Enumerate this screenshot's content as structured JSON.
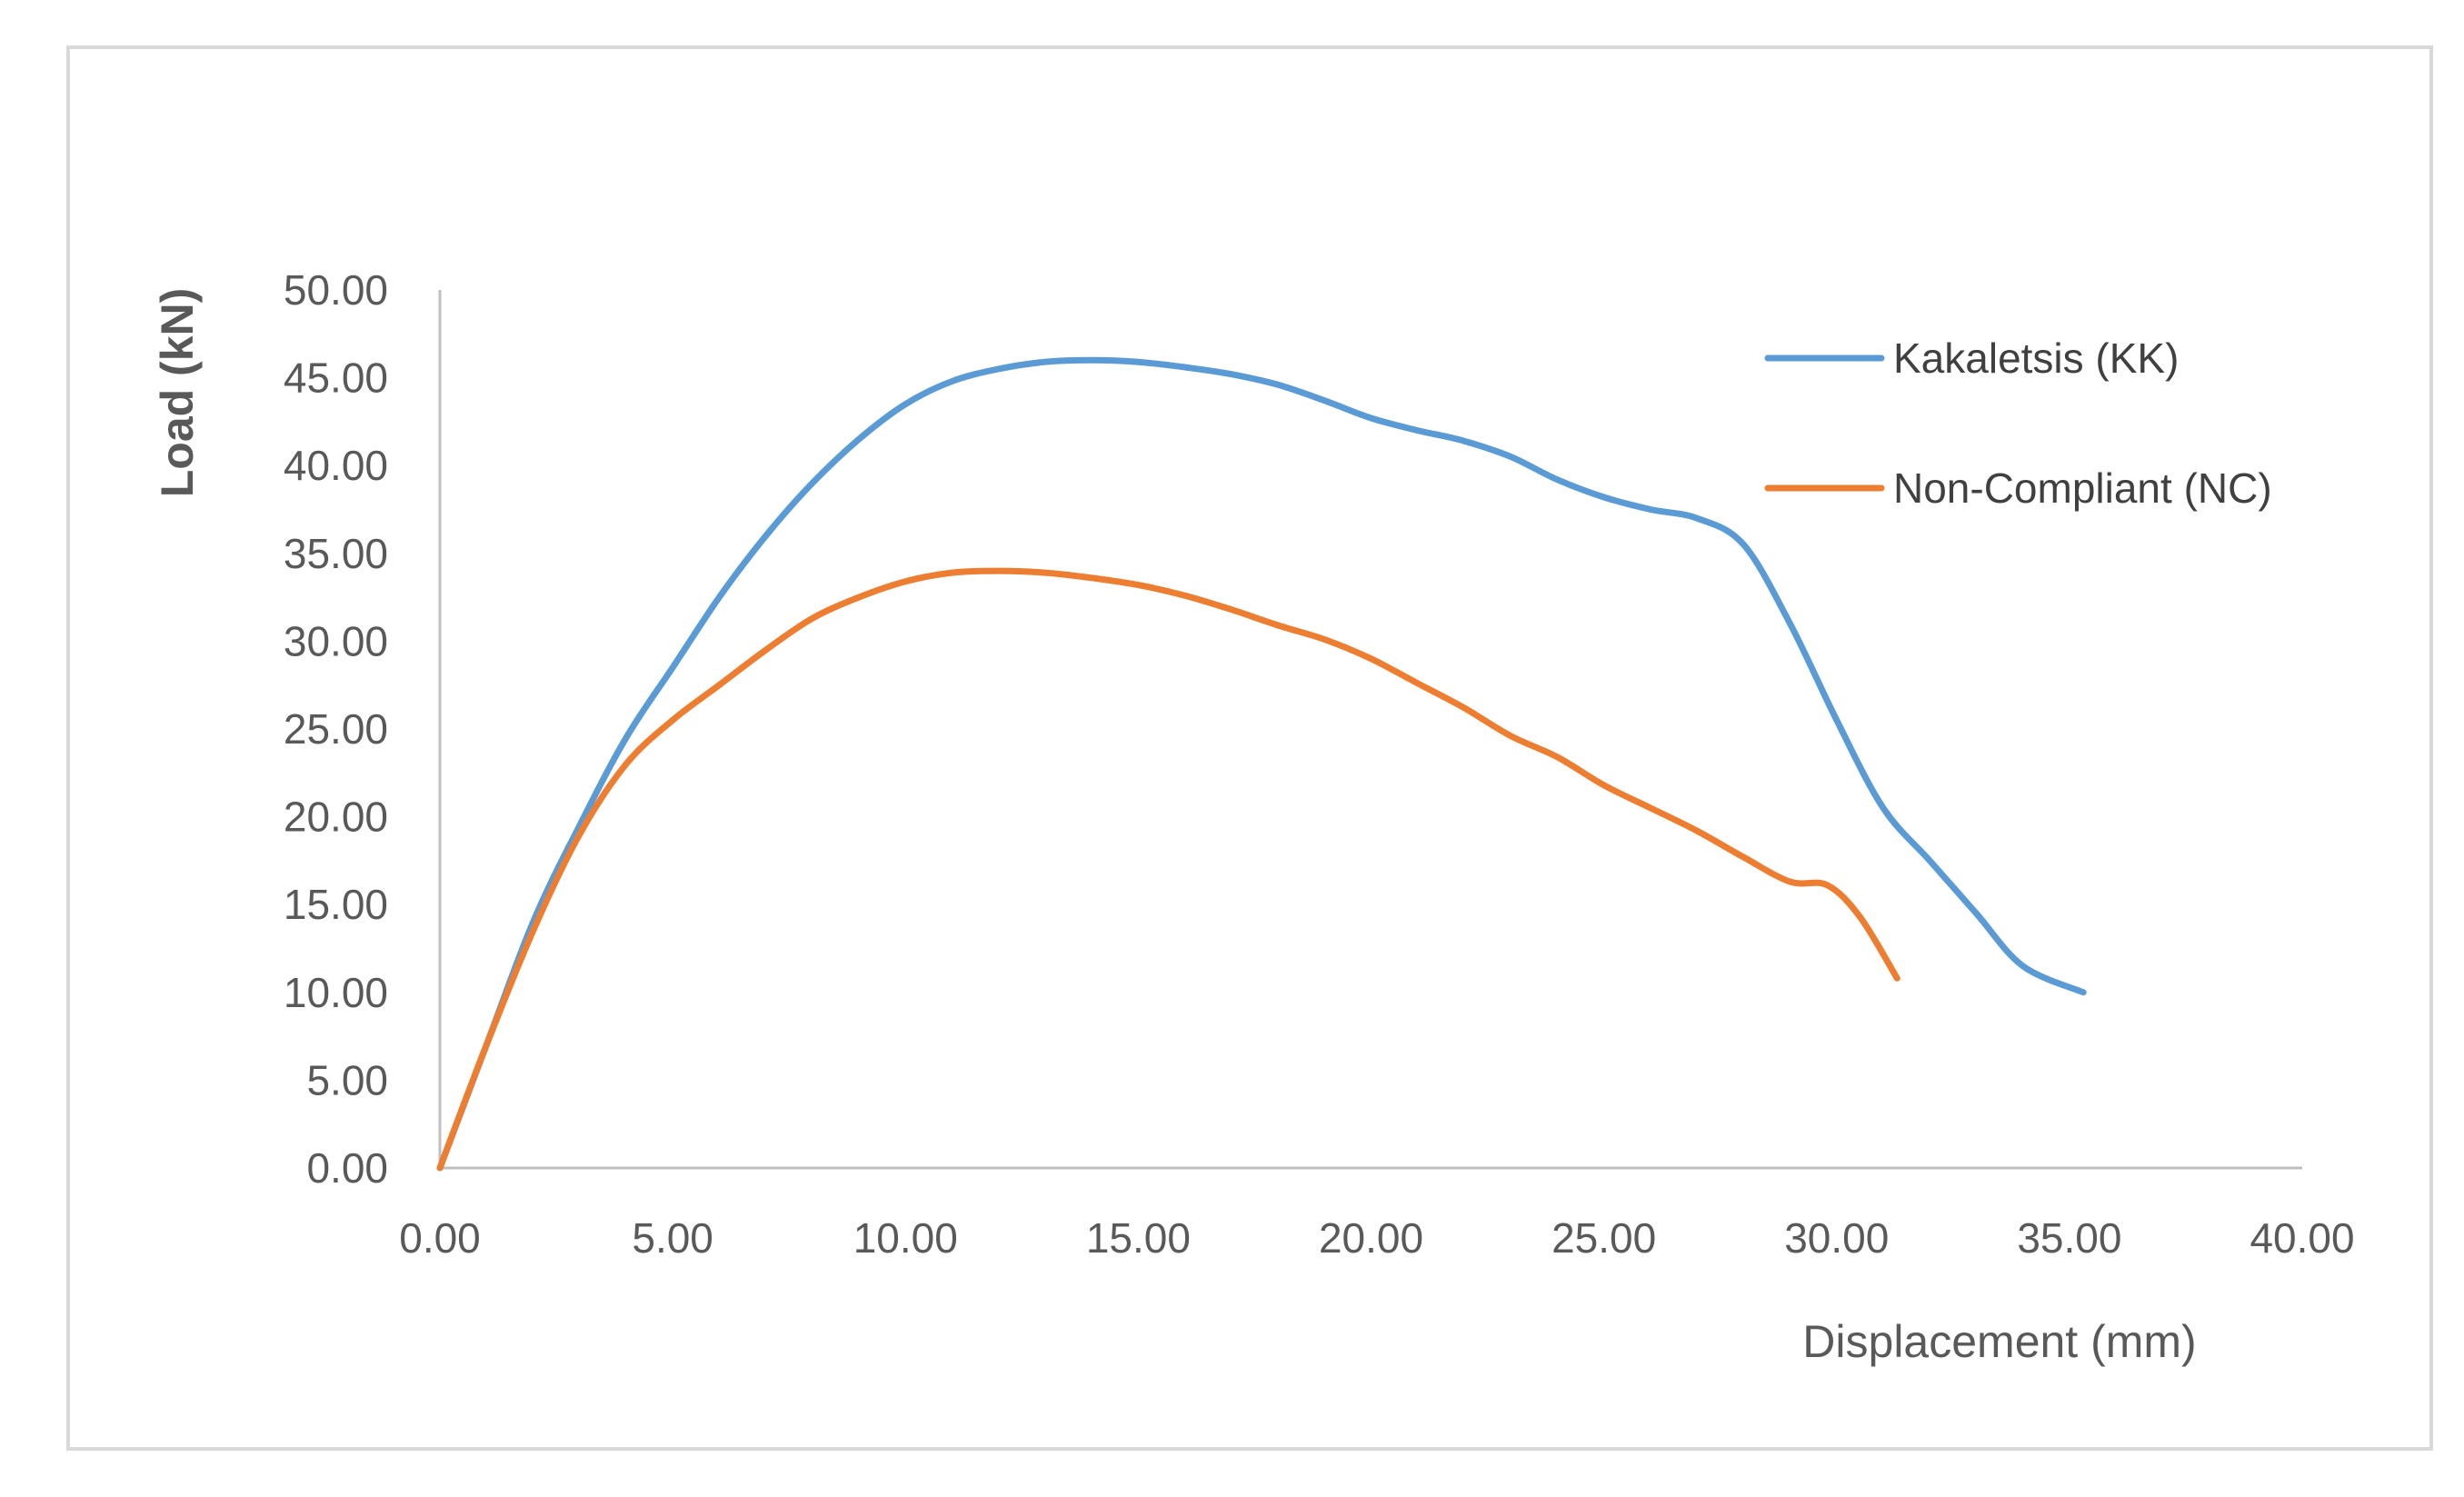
{
  "chart_data": {
    "type": "line",
    "title": "",
    "xlabel": "Displacement (mm)",
    "ylabel": "Load (kN)",
    "xlim": [
      0,
      40
    ],
    "ylim": [
      0,
      50
    ],
    "x_ticks": [
      "0.00",
      "5.00",
      "10.00",
      "15.00",
      "20.00",
      "25.00",
      "30.00",
      "35.00",
      "40.00"
    ],
    "y_ticks": [
      "0.00",
      "5.00",
      "10.00",
      "15.00",
      "20.00",
      "25.00",
      "30.00",
      "35.00",
      "40.00",
      "45.00",
      "50.00"
    ],
    "grid": false,
    "legend_position": "right",
    "series": [
      {
        "name": "Kakaletsis (KK)",
        "color": "#5b9bd5",
        "points": [
          [
            0.0,
            0.0
          ],
          [
            1.0,
            7.0
          ],
          [
            2.0,
            14.0
          ],
          [
            3.0,
            19.5
          ],
          [
            4.0,
            24.5
          ],
          [
            5.0,
            28.5
          ],
          [
            6.0,
            32.5
          ],
          [
            7.0,
            36.0
          ],
          [
            8.0,
            39.0
          ],
          [
            9.0,
            41.5
          ],
          [
            10.0,
            43.5
          ],
          [
            11.0,
            44.8
          ],
          [
            12.0,
            45.5
          ],
          [
            13.0,
            45.9
          ],
          [
            14.0,
            46.0
          ],
          [
            15.0,
            45.9
          ],
          [
            16.0,
            45.6
          ],
          [
            17.0,
            45.2
          ],
          [
            18.0,
            44.6
          ],
          [
            19.0,
            43.7
          ],
          [
            20.0,
            42.7
          ],
          [
            21.0,
            42.0
          ],
          [
            22.0,
            41.4
          ],
          [
            23.0,
            40.5
          ],
          [
            24.0,
            39.2
          ],
          [
            25.0,
            38.2
          ],
          [
            26.0,
            37.5
          ],
          [
            27.0,
            37.0
          ],
          [
            28.0,
            35.5
          ],
          [
            29.0,
            31.0
          ],
          [
            30.0,
            25.5
          ],
          [
            31.0,
            20.5
          ],
          [
            32.0,
            17.5
          ],
          [
            33.0,
            14.5
          ],
          [
            34.0,
            11.5
          ],
          [
            35.3,
            10.0
          ]
        ]
      },
      {
        "name": "Non-Compliant (NC)",
        "color": "#ed7d31",
        "points": [
          [
            0.0,
            0.0
          ],
          [
            1.0,
            7.0
          ],
          [
            2.0,
            13.5
          ],
          [
            3.0,
            19.0
          ],
          [
            4.0,
            23.0
          ],
          [
            5.0,
            25.5
          ],
          [
            6.0,
            27.5
          ],
          [
            7.0,
            29.5
          ],
          [
            8.0,
            31.3
          ],
          [
            9.0,
            32.5
          ],
          [
            10.0,
            33.4
          ],
          [
            11.0,
            33.9
          ],
          [
            12.0,
            34.0
          ],
          [
            13.0,
            33.9
          ],
          [
            14.0,
            33.6
          ],
          [
            15.0,
            33.2
          ],
          [
            16.0,
            32.6
          ],
          [
            17.0,
            31.8
          ],
          [
            18.0,
            30.9
          ],
          [
            19.0,
            30.1
          ],
          [
            20.0,
            29.0
          ],
          [
            21.0,
            27.6
          ],
          [
            22.0,
            26.2
          ],
          [
            23.0,
            24.6
          ],
          [
            24.0,
            23.4
          ],
          [
            25.0,
            21.8
          ],
          [
            26.0,
            20.5
          ],
          [
            27.0,
            19.2
          ],
          [
            28.0,
            17.7
          ],
          [
            29.0,
            16.3
          ],
          [
            29.8,
            16.1
          ],
          [
            30.5,
            14.3
          ],
          [
            31.3,
            10.8
          ]
        ]
      }
    ]
  }
}
